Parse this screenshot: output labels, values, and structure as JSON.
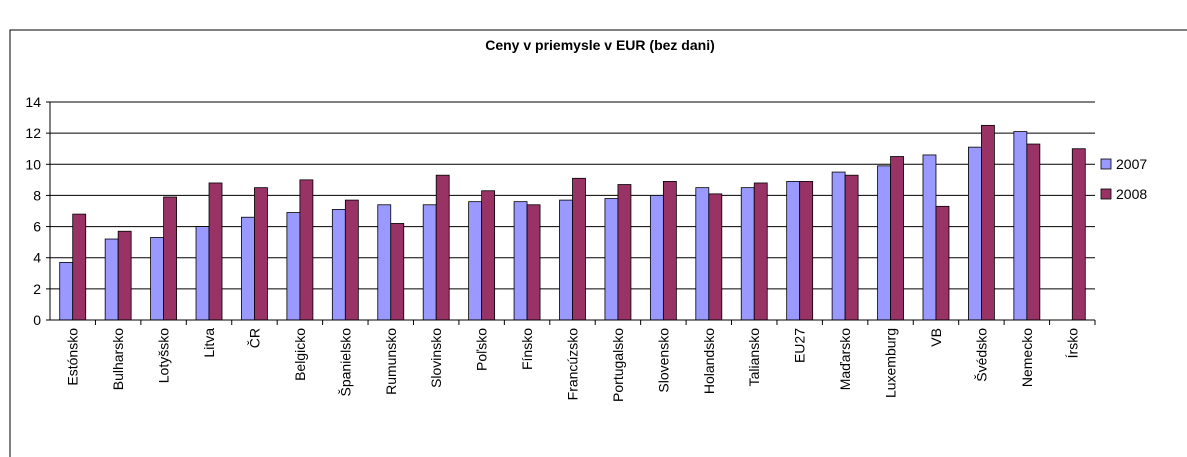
{
  "chart_data": {
    "type": "bar",
    "title": "Ceny v priemysle v EUR (bez dani)",
    "categories": [
      "Estónsko",
      "Bulharsko",
      "Lotyšsko",
      "Litva",
      "ČR",
      "Belgicko",
      "Španielsko",
      "Rumunsko",
      "Slovinsko",
      "Poľsko",
      "Fínsko",
      "Francúzsko",
      "Portugalsko",
      "Slovensko",
      "Holandsko",
      "Taliansko",
      "EU27",
      "Maďarsko",
      "Luxemburg",
      "VB",
      "Švédsko",
      "Nemecko",
      "Írsko"
    ],
    "series": [
      {
        "name": "2007",
        "color": "#9999ff",
        "values": [
          3.7,
          5.2,
          5.3,
          6.0,
          6.6,
          6.9,
          7.1,
          7.4,
          7.4,
          7.6,
          7.6,
          7.7,
          7.8,
          8.0,
          8.5,
          8.5,
          8.9,
          9.5,
          9.9,
          10.6,
          11.1,
          12.1,
          null
        ]
      },
      {
        "name": "2008",
        "color": "#993366",
        "values": [
          6.8,
          5.7,
          7.9,
          8.8,
          8.5,
          9.0,
          7.7,
          6.2,
          9.3,
          8.3,
          7.4,
          9.1,
          8.7,
          8.9,
          8.1,
          8.8,
          8.9,
          9.3,
          10.5,
          7.3,
          12.5,
          11.3,
          11.0
        ]
      }
    ],
    "ylim": [
      0,
      14
    ],
    "yticks": [
      0,
      2,
      4,
      6,
      8,
      10,
      12,
      14
    ],
    "grid": true,
    "legend": "right"
  }
}
